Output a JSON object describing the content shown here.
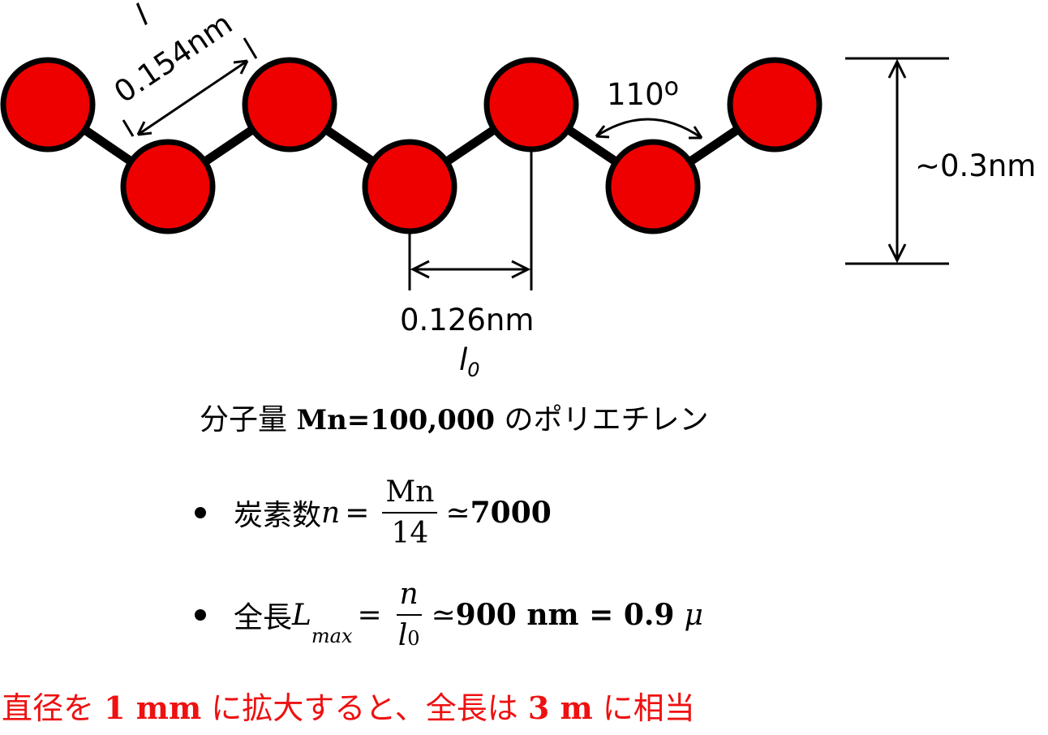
{
  "diagram": {
    "bond_length_label": "0.154nm",
    "bond_symbol": "l",
    "angle_label": "110",
    "angle_superscript": "o",
    "height_label": "~0.3nm",
    "projection_label": "0.126nm",
    "projection_symbol": "l",
    "projection_subscript": "0",
    "atom_color": "#ee0000"
  },
  "text": {
    "title_prefix": "分子量 ",
    "title_bold": "Mn=100,000",
    "title_suffix": " のポリエチレン",
    "bullet1_label": "炭素数 ",
    "bullet1_var": "n",
    "bullet1_eq": " = ",
    "bullet1_num": "Mn",
    "bullet1_den": "14",
    "bullet1_approx": "≃ ",
    "bullet1_value": "7000",
    "bullet2_label": "全長 ",
    "bullet2_var": "L",
    "bullet2_sub": "max",
    "bullet2_eq": " = ",
    "bullet2_num": "n",
    "bullet2_den_var": "l",
    "bullet2_den_sub": "0",
    "bullet2_approx": "≃ ",
    "bullet2_value": "900 nm = 0.9",
    "bullet2_unit": "μ",
    "note_part1": "直径を ",
    "note_bold1": "1 mm",
    "note_part2": " に拡大すると、全長は ",
    "note_bold2": "3 m",
    "note_part3": " に相当",
    "note_color": "#ee1111"
  }
}
